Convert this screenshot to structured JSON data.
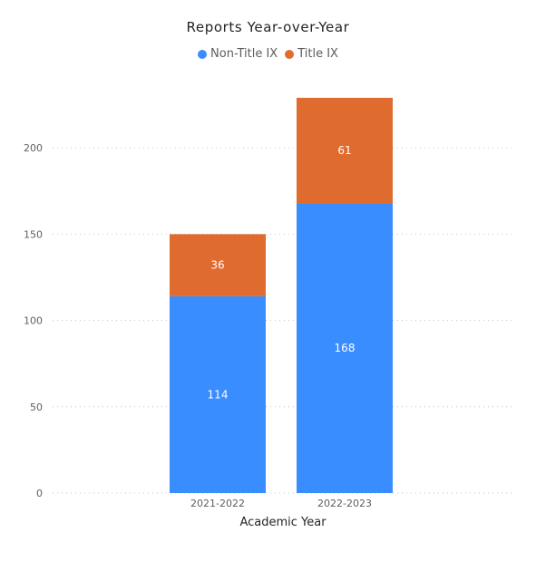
{
  "chart_data": {
    "type": "bar",
    "stacked": true,
    "title": "Reports Year-over-Year",
    "xlabel": "Academic Year",
    "ylabel": "",
    "categories": [
      "2021-2022",
      "2022-2023"
    ],
    "series": [
      {
        "name": "Non-Title IX",
        "values": [
          114,
          168
        ],
        "color": "#3a8dff"
      },
      {
        "name": "Title IX",
        "values": [
          36,
          61
        ],
        "color": "#e06b2f"
      }
    ],
    "ylim": [
      0,
      230
    ],
    "yticks": [
      0,
      50,
      100,
      150,
      200
    ],
    "grid": true,
    "legend_position": "top-center",
    "data_labels": true
  }
}
